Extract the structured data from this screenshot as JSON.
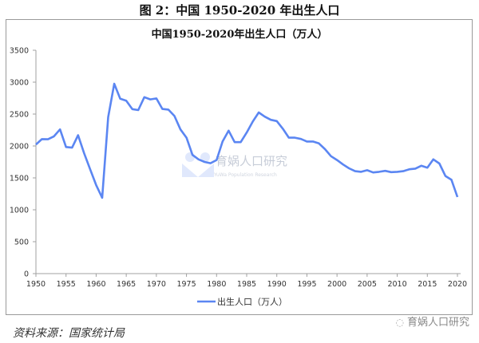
{
  "figure": {
    "caption": "图 2：中国 1950-2020 年出生人口",
    "source": "资料来源：国家统计局",
    "watermark_center": "育娲人口研究",
    "watermark_center_sub": "YuWa Population Research",
    "watermark_bottom": "育娲人口研究",
    "wechat_icon": "wechat-icon"
  },
  "chart_data": {
    "type": "line",
    "title": "中国1950-2020年出生人口（万人）",
    "xlabel": "",
    "ylabel": "",
    "ylim": [
      0,
      3500
    ],
    "xlim": [
      1950,
      2020
    ],
    "yticks": [
      0,
      500,
      1000,
      1500,
      2000,
      2500,
      3000,
      3500
    ],
    "xticks": [
      1950,
      1955,
      1960,
      1965,
      1970,
      1975,
      1980,
      1985,
      1990,
      1995,
      2000,
      2005,
      2010,
      2015,
      2020
    ],
    "grid": false,
    "legend_position": "bottom",
    "color": "#5b86f2",
    "x": [
      1950,
      1951,
      1952,
      1953,
      1954,
      1955,
      1956,
      1957,
      1958,
      1959,
      1960,
      1961,
      1962,
      1963,
      1964,
      1965,
      1966,
      1967,
      1968,
      1969,
      1970,
      1971,
      1972,
      1973,
      1974,
      1975,
      1976,
      1977,
      1978,
      1979,
      1980,
      1981,
      1982,
      1983,
      1984,
      1985,
      1986,
      1987,
      1988,
      1989,
      1990,
      1991,
      1992,
      1993,
      1994,
      1995,
      1996,
      1997,
      1998,
      1999,
      2000,
      2001,
      2002,
      2003,
      2004,
      2005,
      2006,
      2007,
      2008,
      2009,
      2010,
      2011,
      2012,
      2013,
      2014,
      2015,
      2016,
      2017,
      2018,
      2019,
      2020
    ],
    "series": [
      {
        "name": "出生人口（万人）",
        "values": [
          2023,
          2107,
          2105,
          2151,
          2260,
          1984,
          1974,
          2169,
          1889,
          1635,
          1389,
          1189,
          2451,
          2975,
          2740,
          2710,
          2577,
          2563,
          2765,
          2730,
          2745,
          2580,
          2570,
          2470,
          2260,
          2130,
          1860,
          1790,
          1750,
          1730,
          1780,
          2070,
          2240,
          2060,
          2060,
          2210,
          2380,
          2525,
          2460,
          2410,
          2390,
          2270,
          2130,
          2130,
          2110,
          2070,
          2070,
          2040,
          1950,
          1840,
          1780,
          1710,
          1650,
          1605,
          1595,
          1620,
          1585,
          1595,
          1610,
          1590,
          1595,
          1605,
          1635,
          1645,
          1690,
          1660,
          1790,
          1725,
          1530,
          1470,
          1200
        ]
      }
    ]
  }
}
